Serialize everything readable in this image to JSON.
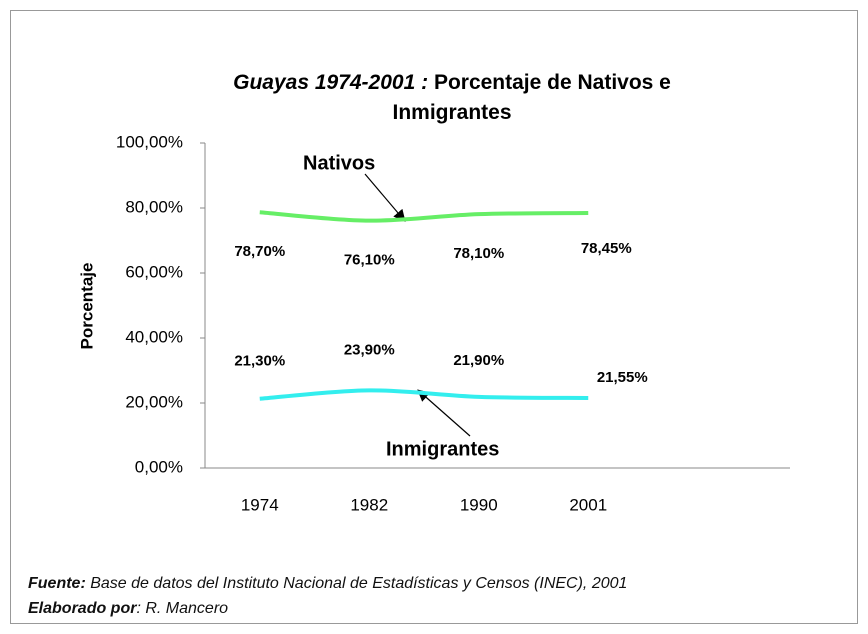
{
  "chart_data": {
    "type": "line",
    "title_italic": "Guayas 1974-2001 :",
    "title": "Porcentaje de Nativos e Inmigrantes",
    "y_label": "Porcentaje",
    "categories": [
      "1974",
      "1982",
      "1990",
      "2001"
    ],
    "series": [
      {
        "name": "Nativos",
        "color": "#66ee66",
        "values": [
          78.7,
          76.1,
          78.1,
          78.45
        ],
        "value_labels": [
          "78,70%",
          "76,10%",
          "78,10%",
          "78,45%"
        ]
      },
      {
        "name": "Inmigrantes",
        "color": "#33eeee",
        "values": [
          21.3,
          23.9,
          21.9,
          21.55
        ],
        "value_labels": [
          "21,30%",
          "23,90%",
          "21,90%",
          "21,55%"
        ]
      }
    ],
    "ylim": [
      0,
      100
    ],
    "yticks": [
      {
        "value": 0,
        "label": "0,00%"
      },
      {
        "value": 20,
        "label": "20,00%"
      },
      {
        "value": 40,
        "label": "40,00%"
      },
      {
        "value": 60,
        "label": "60,00%"
      },
      {
        "value": 80,
        "label": "80,00%"
      },
      {
        "value": 100,
        "label": "100,00%"
      }
    ],
    "grid": false,
    "source_label": "Fuente:",
    "source": "Base de datos del  Instituto Nacional de Estadísticas y Censos  (INEC), 2001",
    "author_label": "Elaborado por",
    "author": ": R. Mancero"
  }
}
